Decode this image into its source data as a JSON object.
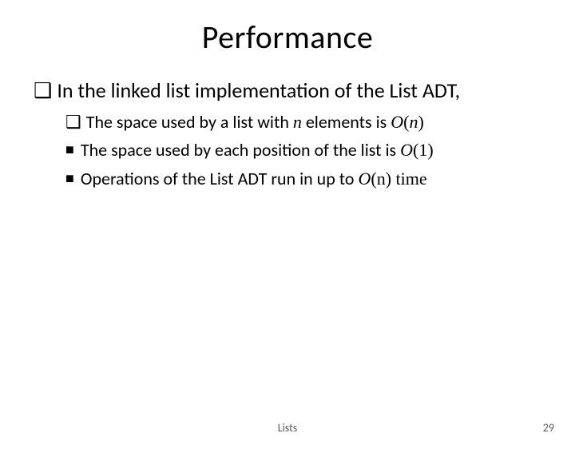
{
  "title": {
    "text": "Performance",
    "fontsize": 40,
    "color": "#000000"
  },
  "body": {
    "lvl1_fontsize": 26,
    "lvl2_fontsize": 22,
    "bullet_hollow": "❑",
    "bullet_solid": "■",
    "main": {
      "bullet": "hollow",
      "text": "In the linked list implementation of the List ADT,"
    },
    "subs": [
      {
        "bullet": "hollow",
        "parts": [
          {
            "t": "The space used by a list with ",
            "cls": ""
          },
          {
            "t": "n",
            "cls": "italic"
          },
          {
            "t": " elements is ",
            "cls": ""
          },
          {
            "t": "O",
            "cls": "italic"
          },
          {
            "t": "(",
            "cls": "serif"
          },
          {
            "t": "n",
            "cls": "italic"
          },
          {
            "t": ")",
            "cls": "serif"
          }
        ]
      },
      {
        "bullet": "solid",
        "parts": [
          {
            "t": "The space used by each position of the list is ",
            "cls": ""
          },
          {
            "t": "O",
            "cls": "italic"
          },
          {
            "t": "(1)",
            "cls": "serif"
          }
        ]
      },
      {
        "bullet": "solid",
        "parts": [
          {
            "t": "Operations of the List ADT run in up to ",
            "cls": ""
          },
          {
            "t": "O",
            "cls": "italic"
          },
          {
            "t": "(n) time",
            "cls": "serif"
          }
        ]
      }
    ]
  },
  "footer": {
    "label": "Lists",
    "fontsize": 14,
    "color": "#5a5a5a"
  },
  "page": {
    "number": "29",
    "fontsize": 14,
    "color": "#5a5a5a"
  }
}
